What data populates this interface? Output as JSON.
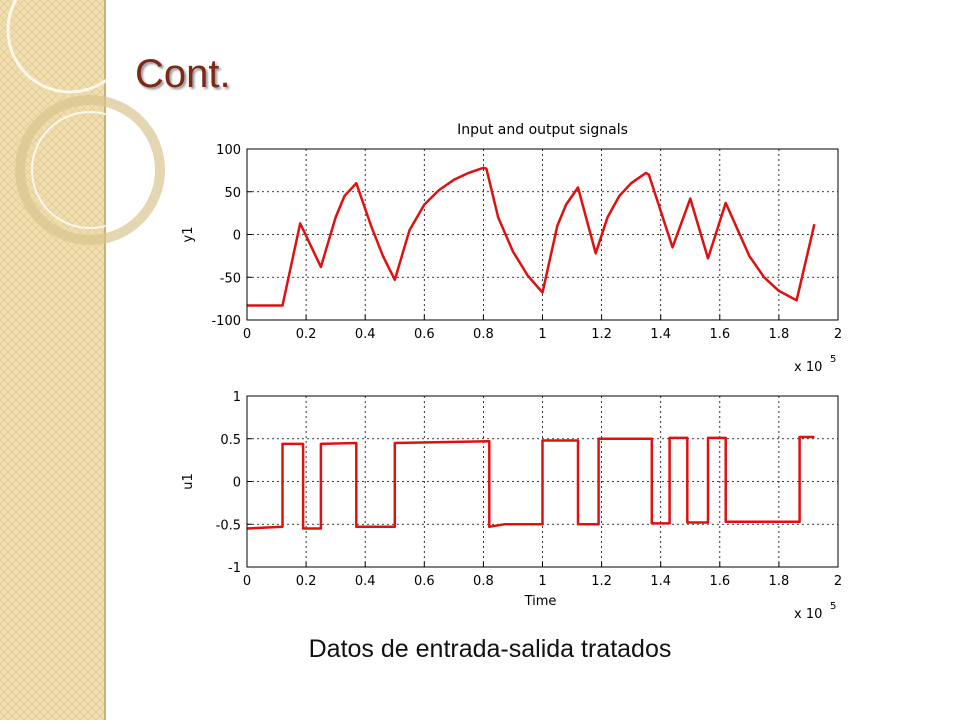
{
  "title": "Cont.",
  "caption": "Datos de entrada-salida tratados",
  "chart_data": [
    {
      "type": "line",
      "title": "Input and output signals",
      "ylabel": "y1",
      "x_multiplier_base": "x 10",
      "x_multiplier_exponent": 5,
      "xlim": [
        0,
        2
      ],
      "xticks": [
        0,
        0.2,
        0.4,
        0.6,
        0.8,
        1,
        1.2,
        1.4,
        1.6,
        1.8,
        2
      ],
      "ylim": [
        -100,
        100
      ],
      "yticks": [
        -100,
        -50,
        0,
        50,
        100
      ],
      "grid": true,
      "color": "#e01010",
      "x": [
        0,
        0.12,
        0.18,
        0.25,
        0.3,
        0.33,
        0.37,
        0.42,
        0.46,
        0.5,
        0.55,
        0.6,
        0.65,
        0.7,
        0.75,
        0.8,
        0.81,
        0.85,
        0.9,
        0.95,
        1.0,
        1.05,
        1.08,
        1.12,
        1.18,
        1.22,
        1.26,
        1.3,
        1.35,
        1.36,
        1.44,
        1.5,
        1.56,
        1.62,
        1.7,
        1.75,
        1.8,
        1.86,
        1.92
      ],
      "values": [
        -83,
        -83,
        13,
        -38,
        20,
        45,
        60,
        10,
        -25,
        -53,
        5,
        35,
        52,
        64,
        72,
        78,
        77,
        20,
        -20,
        -48,
        -68,
        10,
        35,
        55,
        -22,
        20,
        45,
        60,
        72,
        70,
        -15,
        42,
        -28,
        37,
        -25,
        -50,
        -66,
        -77,
        12
      ]
    },
    {
      "type": "line",
      "ylabel": "u1",
      "xlabel": "Time",
      "x_multiplier_base": "x 10",
      "x_multiplier_exponent": 5,
      "xlim": [
        0,
        2
      ],
      "xticks": [
        0,
        0.2,
        0.4,
        0.6,
        0.8,
        1,
        1.2,
        1.4,
        1.6,
        1.8,
        2
      ],
      "ylim": [
        -1,
        1
      ],
      "yticks": [
        -1,
        -0.5,
        0,
        0.5,
        1
      ],
      "grid": true,
      "color": "#e01010",
      "x": [
        0,
        0.12,
        0.12,
        0.19,
        0.19,
        0.25,
        0.25,
        0.37,
        0.37,
        0.5,
        0.5,
        0.82,
        0.82,
        0.87,
        1.0,
        1.0,
        1.12,
        1.12,
        1.19,
        1.19,
        1.37,
        1.37,
        1.43,
        1.43,
        1.49,
        1.49,
        1.56,
        1.56,
        1.62,
        1.62,
        1.87,
        1.87,
        1.92
      ],
      "values": [
        -0.55,
        -0.53,
        0.44,
        0.44,
        -0.55,
        -0.55,
        0.44,
        0.45,
        -0.53,
        -0.53,
        0.45,
        0.47,
        -0.53,
        -0.5,
        -0.5,
        0.48,
        0.48,
        -0.5,
        -0.5,
        0.5,
        0.5,
        -0.49,
        -0.49,
        0.51,
        0.51,
        -0.48,
        -0.48,
        0.51,
        0.51,
        -0.47,
        -0.47,
        0.52,
        0.52
      ]
    }
  ]
}
